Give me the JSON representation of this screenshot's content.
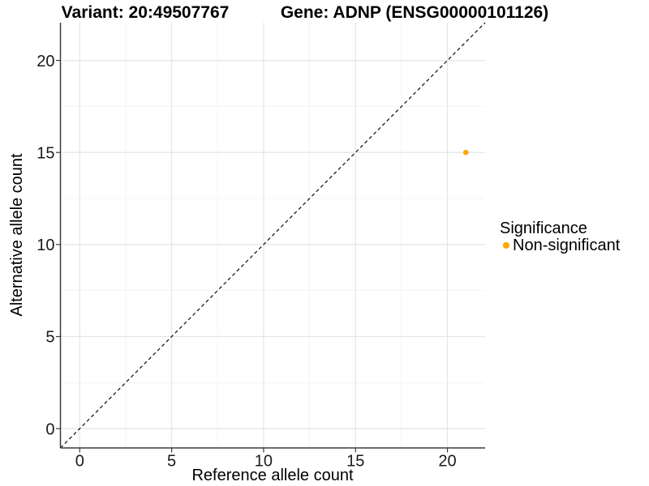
{
  "chart_data": {
    "type": "scatter",
    "title_left": "Variant: 20:49507767",
    "title_right": "Gene: ADNP (ENSG00000101126)",
    "xlabel": "Reference allele count",
    "ylabel": "Alternative allele count",
    "xlim": [
      -1.05,
      22.05
    ],
    "ylim": [
      -1.05,
      22.05
    ],
    "xticks": [
      0,
      5,
      10,
      15,
      20
    ],
    "yticks": [
      0,
      5,
      10,
      15,
      20
    ],
    "xticks_minor": [
      2.5,
      7.5,
      12.5,
      17.5
    ],
    "yticks_minor": [
      2.5,
      7.5,
      12.5,
      17.5
    ],
    "grid": "major+minor",
    "legend_position": "right",
    "reference_line": {
      "type": "identity",
      "equation": "y = x",
      "style": "dashed",
      "color": "#0a0a0a"
    },
    "series": [
      {
        "name": "Non-significant",
        "color": "#FFA500",
        "points": [
          {
            "x": 21,
            "y": 15
          }
        ]
      }
    ],
    "legend": {
      "title": "Significance",
      "entries": [
        {
          "label": "Non-significant",
          "color": "#FFA500",
          "marker": "circle"
        }
      ]
    },
    "colors": {
      "grid_major": "#E5E5E5",
      "grid_minor": "#F2F2F2",
      "axis_line": "#3C3C3C",
      "background": "#FFFFFF"
    }
  }
}
